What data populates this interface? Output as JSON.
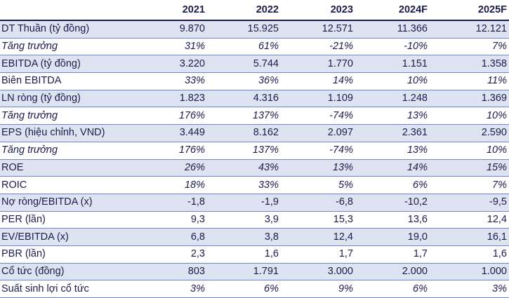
{
  "table": {
    "columns": [
      "2021",
      "2022",
      "2023",
      "2024F",
      "2025F"
    ],
    "rows": [
      {
        "label": "DT Thuần (tỷ đồng)",
        "values": [
          "9.870",
          "15.925",
          "12.571",
          "11.366",
          "12.121"
        ],
        "italic": false,
        "shaded": true
      },
      {
        "label": "Tăng trưởng",
        "values": [
          "31%",
          "61%",
          "-21%",
          "-10%",
          "7%"
        ],
        "italic": true,
        "shaded": false
      },
      {
        "label": "EBITDA (tỷ đồng)",
        "values": [
          "3.220",
          "5.744",
          "1.770",
          "1.151",
          "1.358"
        ],
        "italic": false,
        "shaded": true
      },
      {
        "label": "Biên EBITDA",
        "values": [
          "33%",
          "36%",
          "14%",
          "10%",
          "11%"
        ],
        "italic": false,
        "values_italic": true,
        "shaded": false
      },
      {
        "label": "LN ròng (tỷ đồng)",
        "values": [
          "1.823",
          "4.316",
          "1.109",
          "1.248",
          "1.369"
        ],
        "italic": false,
        "shaded": true
      },
      {
        "label": "Tăng trưởng",
        "values": [
          "176%",
          "137%",
          "-74%",
          "13%",
          "10%"
        ],
        "italic": true,
        "shaded": false
      },
      {
        "label": "EPS (hiệu chỉnh, VND)",
        "values": [
          "3.449",
          "8.162",
          "2.097",
          "2.361",
          "2.590"
        ],
        "italic": false,
        "shaded": true
      },
      {
        "label": "Tăng trưởng",
        "values": [
          "176%",
          "137%",
          "-74%",
          "13%",
          "10%"
        ],
        "italic": true,
        "shaded": false
      },
      {
        "label": "ROE",
        "values": [
          "26%",
          "43%",
          "13%",
          "14%",
          "15%"
        ],
        "italic": false,
        "values_italic": true,
        "shaded": true
      },
      {
        "label": "ROIC",
        "values": [
          "18%",
          "33%",
          "5%",
          "6%",
          "7%"
        ],
        "italic": false,
        "values_italic": true,
        "shaded": false
      },
      {
        "label": "Nợ ròng/EBITDA (x)",
        "values": [
          "-1,8",
          "-1,9",
          "-6,8",
          "-10,2",
          "-9,5"
        ],
        "italic": false,
        "shaded": true
      },
      {
        "label": "PER (lần)",
        "values": [
          "9,3",
          "3,9",
          "15,3",
          "13,6",
          "12,4"
        ],
        "italic": false,
        "shaded": false
      },
      {
        "label": "EV/EBITDA (x)",
        "values": [
          "6,8",
          "3,8",
          "12,4",
          "19,0",
          "16,1"
        ],
        "italic": false,
        "shaded": true
      },
      {
        "label": "PBR (lần)",
        "values": [
          "2,3",
          "1,6",
          "1,7",
          "1,7",
          "1,6"
        ],
        "italic": false,
        "shaded": false
      },
      {
        "label": "Cổ tức (đồng)",
        "values": [
          "803",
          "1.791",
          "3.000",
          "2.000",
          "1.000"
        ],
        "italic": false,
        "shaded": true
      },
      {
        "label": "Suất sinh lợi cổ tức",
        "values": [
          "3%",
          "6%",
          "9%",
          "6%",
          "3%"
        ],
        "italic": false,
        "values_italic": true,
        "shaded": false
      }
    ]
  },
  "colors": {
    "text": "#1b1b4d",
    "shade": "#dde3f1",
    "rule": "#6f86c8"
  }
}
